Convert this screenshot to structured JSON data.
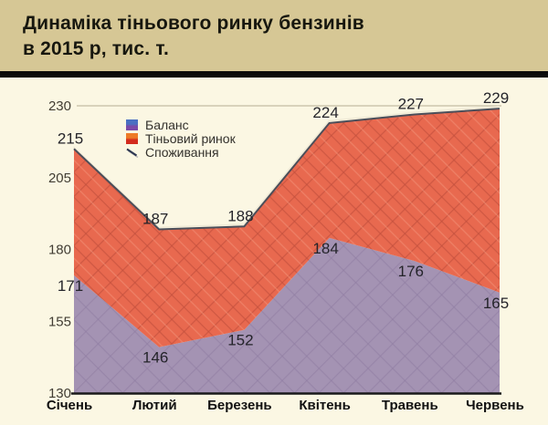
{
  "header": {
    "title_line1": "Динаміка тіньового ринку бензинів",
    "title_line2": "в 2015 р, тис. т."
  },
  "legend": {
    "items": [
      {
        "label": "Баланс",
        "marker": "gradient-square",
        "colors": [
          "#4a70c2",
          "#7c4aa8"
        ]
      },
      {
        "label": "Тіньовий ринок",
        "marker": "gradient-square",
        "colors": [
          "#ee7b27",
          "#d32b1e"
        ]
      },
      {
        "label": "Споживання",
        "marker": "diagonal-line",
        "colors": [
          "#2c3650",
          "#bbbbbb"
        ]
      }
    ]
  },
  "chart_data": {
    "type": "area",
    "title": "Динаміка тіньового ринку бензинів в 2015 р, тис. т.",
    "categories": [
      "Січень",
      "Лютий",
      "Березень",
      "Квітень",
      "Травень",
      "Червень"
    ],
    "series": [
      {
        "name": "Баланс",
        "role": "lower-area",
        "values": [
          171,
          146,
          152,
          184,
          176,
          165
        ],
        "color": "#a493b3"
      },
      {
        "name": "Тіньовий ринок",
        "role": "stacked-area-between-balance-and-consumption",
        "values": [
          44,
          41,
          36,
          40,
          51,
          64
        ],
        "color": "#e8694f"
      },
      {
        "name": "Споживання",
        "role": "top-line",
        "values": [
          215,
          187,
          188,
          224,
          227,
          229
        ],
        "color": "#4b4e59"
      }
    ],
    "yticks": [
      130,
      155,
      180,
      205,
      230
    ],
    "ylim": [
      130,
      230
    ],
    "grid": "single horizontal gridline at 230",
    "legend_position": "top-left-inside"
  },
  "colors": {
    "header_bg": "#d6c795",
    "divider": "#0b0b0b",
    "body_bg": "#fbf7e3",
    "balance_fill": "#a493b3",
    "balance_hatch": "#8f7da2",
    "shadow_fill": "#e8694f",
    "shadow_hatch": "#c24e3c",
    "shadow_hatch_light": "#f2937a",
    "consumption_line": "#4b4e59",
    "consumption_glow": "#efead6",
    "gridline": "#ccc5ae",
    "axis": "#1a1a1a",
    "data_label": "#24242a",
    "ytick_label": "#413d33",
    "xtick_label": "#101010"
  }
}
